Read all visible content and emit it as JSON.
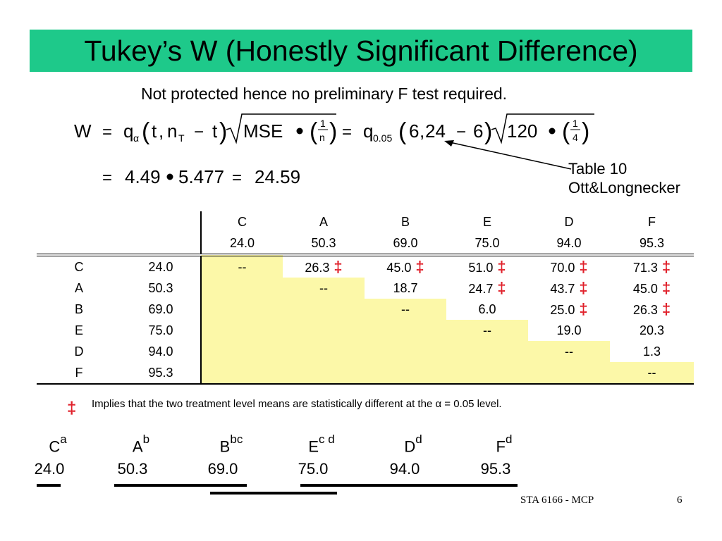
{
  "title": "Tukey’s W (Honestly Significant Difference)",
  "subtitle": "Not protected hence no preliminary F test required.",
  "formula": {
    "line1_W": "W",
    "eq": "=",
    "q": "q",
    "alpha": "α",
    "t": "t",
    "n": "n",
    "T": "T",
    "minus": "−",
    "mse": "MSE",
    "one": "1",
    "small_n": "n",
    "q_sub": "0.05",
    "six": "6",
    "twentyfour": "24",
    "onetwenty": "120",
    "four": "4",
    "line2_eq": "=",
    "v1": "4.49",
    "v2": "5.477",
    "v3": "24.59"
  },
  "table_note": {
    "line1": "Table 10",
    "line2": "Ott&Longnecker"
  },
  "table": {
    "col_labels": [
      "C",
      "A",
      "B",
      "E",
      "D",
      "F"
    ],
    "col_means": [
      "24.0",
      "50.3",
      "69.0",
      "75.0",
      "94.0",
      "95.3"
    ],
    "rows": [
      {
        "label": "C",
        "mean": "24.0",
        "cells": [
          {
            "v": "--",
            "sig": false
          },
          {
            "v": "26.3",
            "sig": true
          },
          {
            "v": "45.0",
            "sig": true
          },
          {
            "v": "51.0",
            "sig": true
          },
          {
            "v": "70.0",
            "sig": true
          },
          {
            "v": "71.3",
            "sig": true
          }
        ]
      },
      {
        "label": "A",
        "mean": "50.3",
        "cells": [
          {
            "v": "",
            "sig": false
          },
          {
            "v": "--",
            "sig": false
          },
          {
            "v": "18.7",
            "sig": false
          },
          {
            "v": "24.7",
            "sig": true
          },
          {
            "v": "43.7",
            "sig": true
          },
          {
            "v": "45.0",
            "sig": true
          }
        ]
      },
      {
        "label": "B",
        "mean": "69.0",
        "cells": [
          {
            "v": "",
            "sig": false
          },
          {
            "v": "",
            "sig": false
          },
          {
            "v": "--",
            "sig": false
          },
          {
            "v": "6.0",
            "sig": false
          },
          {
            "v": "25.0",
            "sig": true
          },
          {
            "v": "26.3",
            "sig": true
          }
        ]
      },
      {
        "label": "E",
        "mean": "75.0",
        "cells": [
          {
            "v": "",
            "sig": false
          },
          {
            "v": "",
            "sig": false
          },
          {
            "v": "",
            "sig": false
          },
          {
            "v": "--",
            "sig": false
          },
          {
            "v": "19.0",
            "sig": false
          },
          {
            "v": "20.3",
            "sig": false
          }
        ]
      },
      {
        "label": "D",
        "mean": "94.0",
        "cells": [
          {
            "v": "",
            "sig": false
          },
          {
            "v": "",
            "sig": false
          },
          {
            "v": "",
            "sig": false
          },
          {
            "v": "",
            "sig": false
          },
          {
            "v": "--",
            "sig": false
          },
          {
            "v": "1.3",
            "sig": false
          }
        ]
      },
      {
        "label": "F",
        "mean": "95.3",
        "cells": [
          {
            "v": "",
            "sig": false
          },
          {
            "v": "",
            "sig": false
          },
          {
            "v": "",
            "sig": false
          },
          {
            "v": "",
            "sig": false
          },
          {
            "v": "",
            "sig": false
          },
          {
            "v": "--",
            "sig": false
          }
        ]
      }
    ]
  },
  "dagger": "‡",
  "legend": "Implies that the two treatment level means are statistically  different at the α = 0.05 level.",
  "groups": [
    {
      "label": "C",
      "sup": "a",
      "mean": "24.0"
    },
    {
      "label": "A",
      "sup": "b",
      "mean": "50.3"
    },
    {
      "label": "B",
      "sup": "bc",
      "mean": "69.0"
    },
    {
      "label": "E",
      "sup": "c d",
      "mean": "75.0"
    },
    {
      "label": "D",
      "sup": "d",
      "mean": "94.0"
    },
    {
      "label": "F",
      "sup": "d",
      "mean": "95.3"
    }
  ],
  "footer": {
    "course": "STA 6166 - MCP",
    "page": "6"
  },
  "colors": {
    "title_bg": "#1ec98a",
    "highlight": "#fcf8a8",
    "dagger": "#e0202a"
  }
}
